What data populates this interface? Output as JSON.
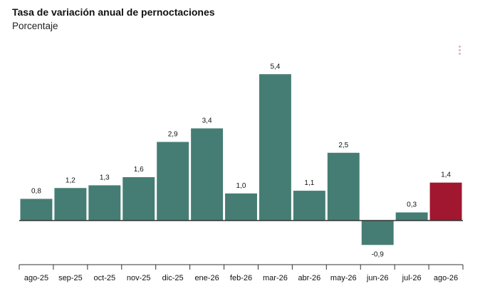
{
  "header": {
    "title": "Tasa de variación anual de pernoctaciones",
    "subtitle": "Porcentaje"
  },
  "menu": {
    "icon": "more-vertical-icon"
  },
  "chart_data": {
    "type": "bar",
    "title": "Tasa de variación anual de pernoctaciones",
    "subtitle": "Porcentaje",
    "categories": [
      "ago-25",
      "sep-25",
      "oct-25",
      "nov-25",
      "dic-25",
      "ene-26",
      "feb-26",
      "mar-26",
      "abr-26",
      "may-26",
      "jun-26",
      "jul-26",
      "ago-26"
    ],
    "values": [
      0.8,
      1.2,
      1.3,
      1.6,
      2.9,
      3.4,
      1.0,
      5.4,
      1.1,
      2.5,
      -0.9,
      0.3,
      1.4
    ],
    "value_labels": [
      "0,8",
      "1,2",
      "1,3",
      "1,6",
      "2,9",
      "3,4",
      "1,0",
      "5,4",
      "1,1",
      "2,5",
      "-0,9",
      "0,3",
      "1,4"
    ],
    "colors": {
      "default": "#457d74",
      "highlight": "#a0172f",
      "zero_line": "#333333"
    },
    "highlight_index": 12,
    "grid": false,
    "legend": "none"
  }
}
